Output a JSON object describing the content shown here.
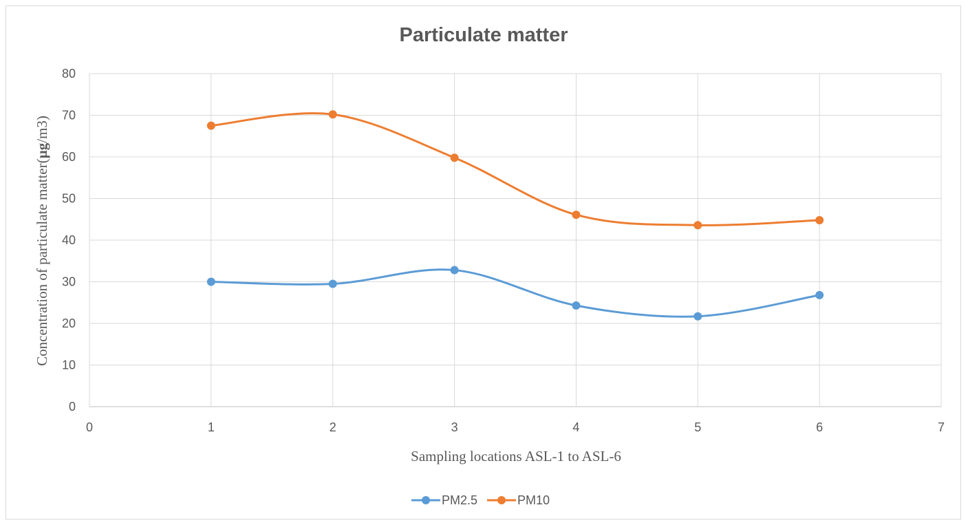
{
  "chart_data": {
    "type": "scatter",
    "title": "Particulate matter",
    "xlabel": "Sampling locations ASL-1 to ASL-6",
    "ylabel_main": "Concentration of particulate matter(",
    "ylabel_unit": "µg",
    "ylabel_end": "/m3)",
    "xlim": [
      0,
      7
    ],
    "ylim": [
      0,
      80
    ],
    "x_ticks": [
      0,
      1,
      2,
      3,
      4,
      5,
      6,
      7
    ],
    "y_ticks": [
      0,
      10,
      20,
      30,
      40,
      50,
      60,
      70,
      80
    ],
    "grid": true,
    "smooth_lines": true,
    "legend_position": "bottom",
    "series": [
      {
        "name": "PM2.5",
        "color": "#5b9bd5",
        "x": [
          1,
          2,
          3,
          4,
          5,
          6
        ],
        "y": [
          30.0,
          29.5,
          32.8,
          24.3,
          21.7,
          26.8
        ]
      },
      {
        "name": "PM10",
        "color": "#ed7d31",
        "x": [
          1,
          2,
          3,
          4,
          5,
          6
        ],
        "y": [
          67.5,
          70.2,
          59.8,
          46.1,
          43.6,
          44.8
        ]
      }
    ]
  }
}
